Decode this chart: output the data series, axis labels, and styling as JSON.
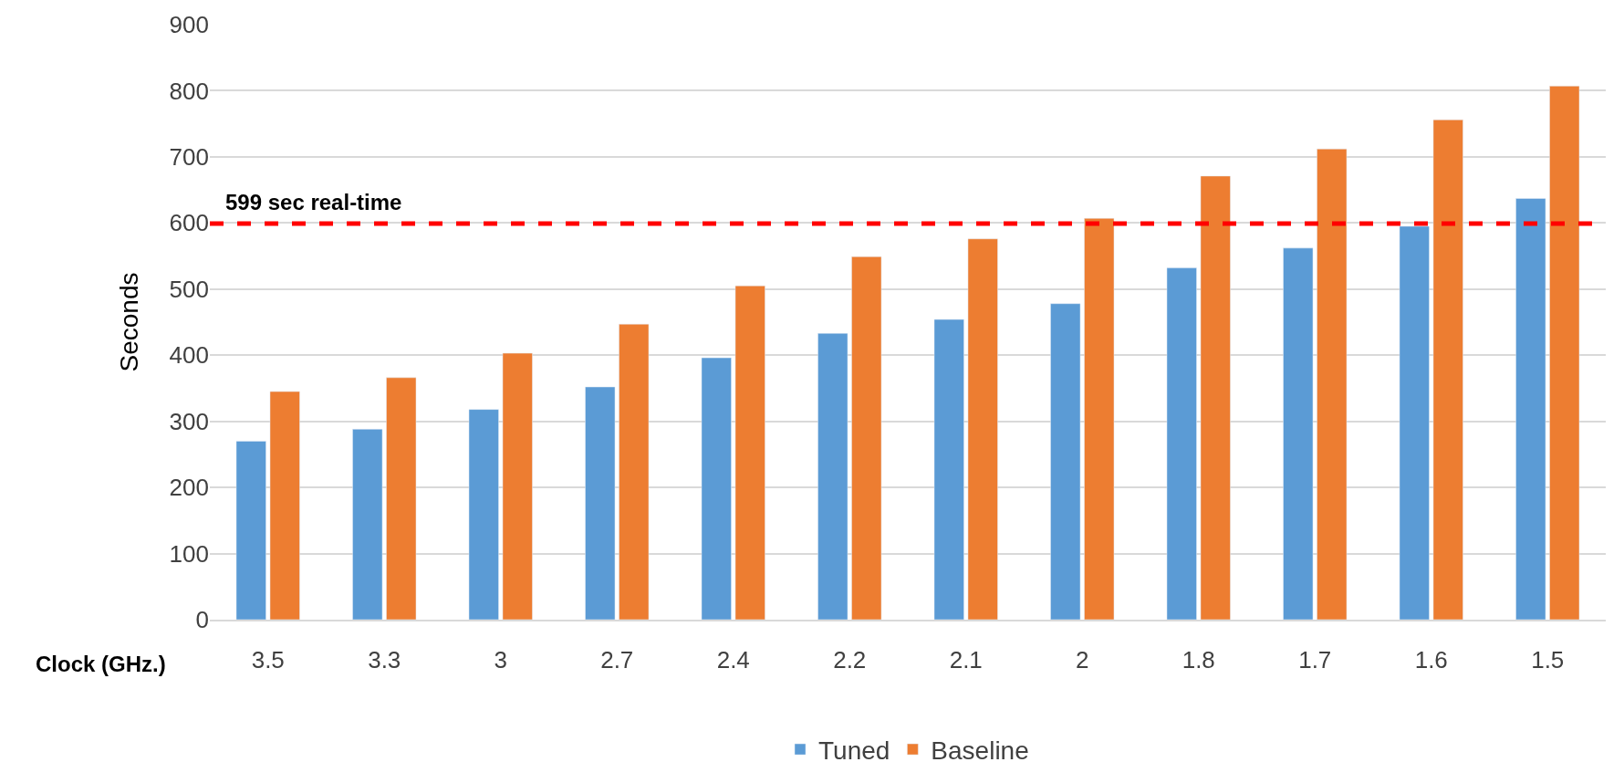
{
  "chart_data": {
    "type": "bar",
    "xlabel": "Clock (GHz.)",
    "ylabel": "Seconds",
    "categories": [
      "3.5",
      "3.3",
      "3",
      "2.7",
      "2.4",
      "2.2",
      "2.1",
      "2",
      "1.8",
      "1.7",
      "1.6",
      "1.5"
    ],
    "series": [
      {
        "name": "Tuned",
        "color": "#5b9bd5",
        "values": [
          270,
          288,
          318,
          352,
          396,
          433,
          454,
          478,
          532,
          562,
          595,
          637
        ]
      },
      {
        "name": "Baseline",
        "color": "#ed7d31",
        "values": [
          345,
          366,
          403,
          447,
          505,
          549,
          576,
          607,
          671,
          712,
          756,
          807
        ]
      }
    ],
    "ylim": [
      0,
      900
    ],
    "yticks": [
      0,
      100,
      200,
      300,
      400,
      500,
      600,
      700,
      800,
      900
    ],
    "grid": "y",
    "legend": "bottom",
    "ref_lines": [
      {
        "axis": "y",
        "value": 599,
        "label": "599 sec real-time",
        "color": "#ff0000",
        "line_style": "dashed"
      }
    ]
  }
}
